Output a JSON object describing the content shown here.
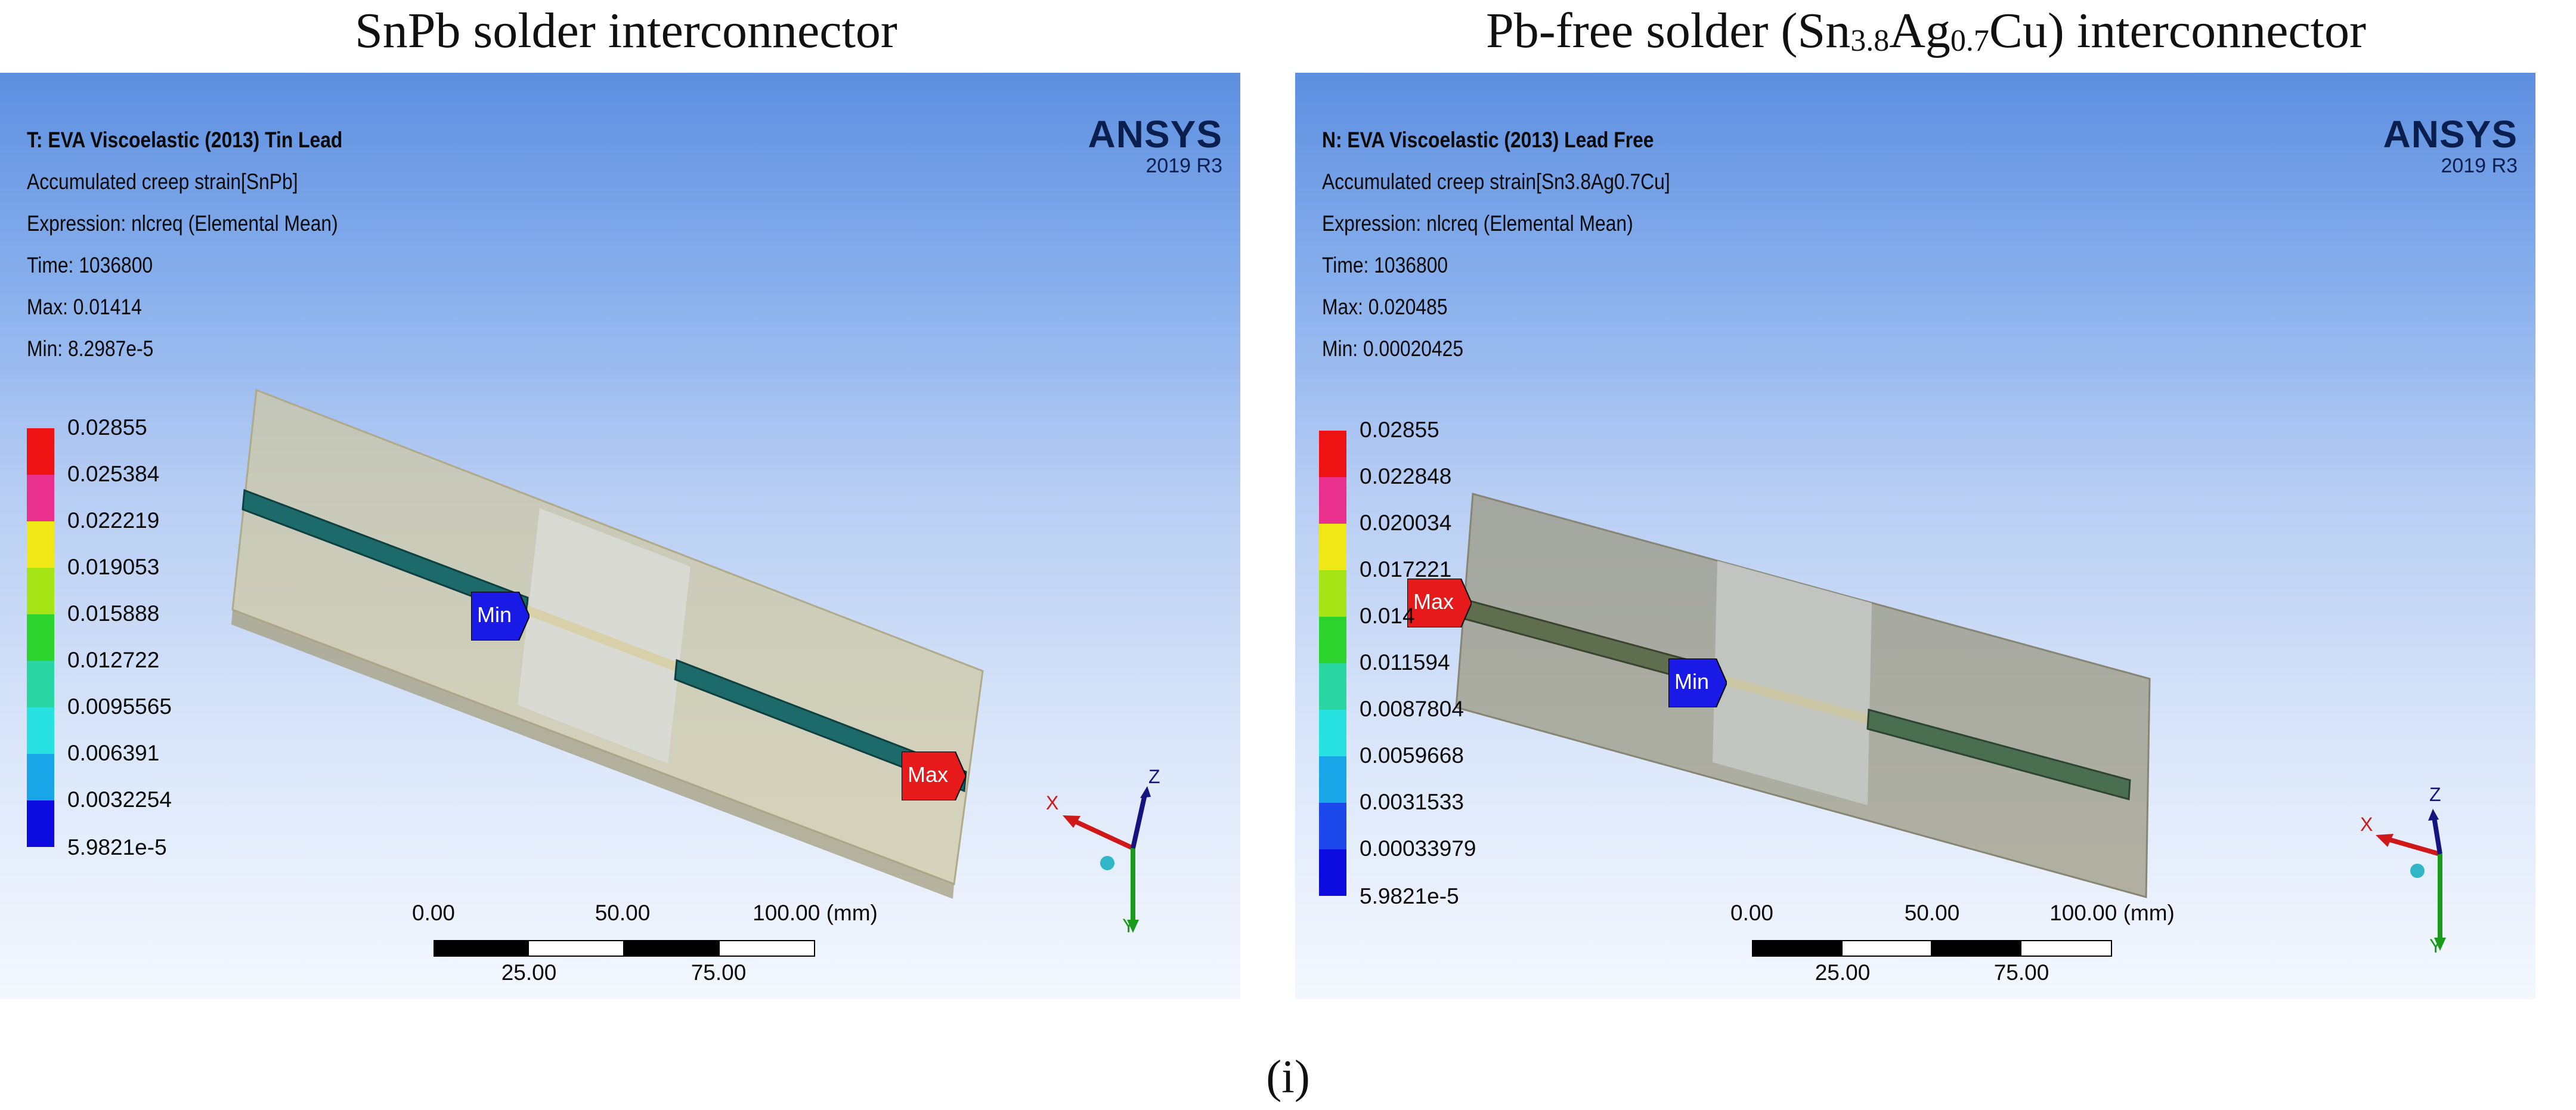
{
  "headings": {
    "left": "SnPb solder interconnector",
    "right_prefix": "Pb-free solder (Sn",
    "right_sub1": "3.8",
    "right_mid": "Ag",
    "right_sub2": "0.7",
    "right_suffix": "Cu) interconnector"
  },
  "caption": "(i)",
  "panels": [
    {
      "title": "T: EVA Viscoelastic (2013) Tin Lead",
      "quantity": "Accumulated creep strain[SnPb]",
      "expression": "Expression: nlcreq (Elemental Mean)",
      "time": "Time: 1036800",
      "max": "Max: 0.01414",
      "min": "Min: 8.2987e-5",
      "logo": {
        "brand": "ANSYS",
        "version": "2019 R3"
      },
      "legend": [
        "0.02855",
        "0.025384",
        "0.022219",
        "0.019053",
        "0.015888",
        "0.012722",
        "0.0095565",
        "0.006391",
        "0.0032254",
        "5.9821e-5"
      ],
      "probe_min": "Min",
      "probe_max": "Max",
      "scale": {
        "top": [
          "0.00",
          "50.00",
          "100.00 (mm)"
        ],
        "bottom": [
          "25.00",
          "75.00"
        ]
      },
      "axes": {
        "x": "X",
        "y": "Y",
        "z": "Z"
      }
    },
    {
      "title": "N: EVA Viscoelastic (2013) Lead Free",
      "quantity": "Accumulated creep strain[Sn3.8Ag0.7Cu]",
      "expression": "Expression: nlcreq (Elemental Mean)",
      "time": "Time: 1036800",
      "max": "Max: 0.020485",
      "min": "Min: 0.00020425",
      "logo": {
        "brand": "ANSYS",
        "version": "2019 R3"
      },
      "legend": [
        "0.02855",
        "0.022848",
        "0.020034",
        "0.017221",
        "0.014",
        "0.011594",
        "0.0087804",
        "0.0059668",
        "0.0031533",
        "0.00033979",
        "5.9821e-5"
      ],
      "probe_min": "Min",
      "probe_max": "Max",
      "scale": {
        "top": [
          "0.00",
          "50.00",
          "100.00 (mm)"
        ],
        "bottom": [
          "25.00",
          "75.00"
        ]
      },
      "axes": {
        "x": "X",
        "y": "Y",
        "z": "Z"
      }
    }
  ],
  "colors": {
    "legend_left": [
      "#ee1212",
      "#e8308c",
      "#f0e816",
      "#a6e416",
      "#2ed42e",
      "#2ad6a2",
      "#28e2e2",
      "#18a6e8",
      "#1c48ec",
      "#0c0ce0"
    ],
    "legend_right": [
      "#ee1212",
      "#e8308c",
      "#f0e816",
      "#a6e416",
      "#2ed42e",
      "#2ad6a2",
      "#28e2e2",
      "#18a6e8",
      "#1c48ec",
      "#1c48ec",
      "#0c0ce0"
    ],
    "probe_min": "#1a1ae6",
    "probe_max": "#e61a1a",
    "axis_x": "#d01818",
    "axis_y": "#1a9a1a",
    "axis_z": "#141480"
  }
}
